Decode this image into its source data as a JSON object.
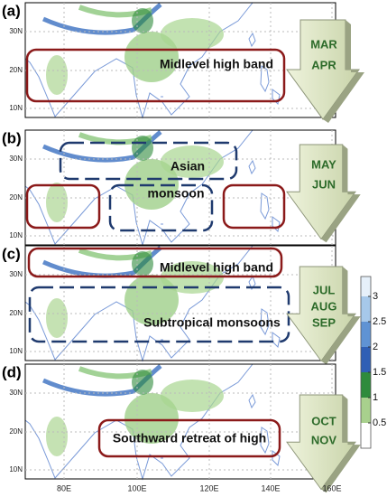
{
  "panels": [
    {
      "label": "(a)",
      "lat_labels": [
        "30N",
        "20N",
        "10N"
      ],
      "annotations": [
        "Midlevel high band"
      ],
      "months": [
        "MAR",
        "APR"
      ]
    },
    {
      "label": "(b)",
      "lat_labels": [
        "30N",
        "20N",
        "10N"
      ],
      "annotations": [
        "Asian",
        "monsoon"
      ],
      "months": [
        "MAY",
        "JUN"
      ]
    },
    {
      "label": "(c)",
      "lat_labels": [
        "30N",
        "20N",
        "10N"
      ],
      "annotations": [
        "Midlevel high band",
        "Subtropical monsoons"
      ],
      "months": [
        "JUL",
        "AUG",
        "SEP"
      ]
    },
    {
      "label": "(d)",
      "lat_labels": [
        "30N",
        "20N",
        "10N"
      ],
      "annotations": [
        "Southward retreat of high"
      ],
      "months": [
        "OCT",
        "NOV"
      ]
    }
  ],
  "lon_labels": [
    "80E",
    "100E",
    "120E",
    "140E",
    "160E"
  ],
  "colorbar": {
    "ticks": [
      0.5,
      1,
      1.5,
      2,
      2.5,
      3
    ],
    "colors": [
      "#ffffff",
      "#a8d08d",
      "#2e8b3c",
      "#2f5fb5",
      "#5f93d4",
      "#a6c8ea",
      "#e6f0fa"
    ]
  }
}
